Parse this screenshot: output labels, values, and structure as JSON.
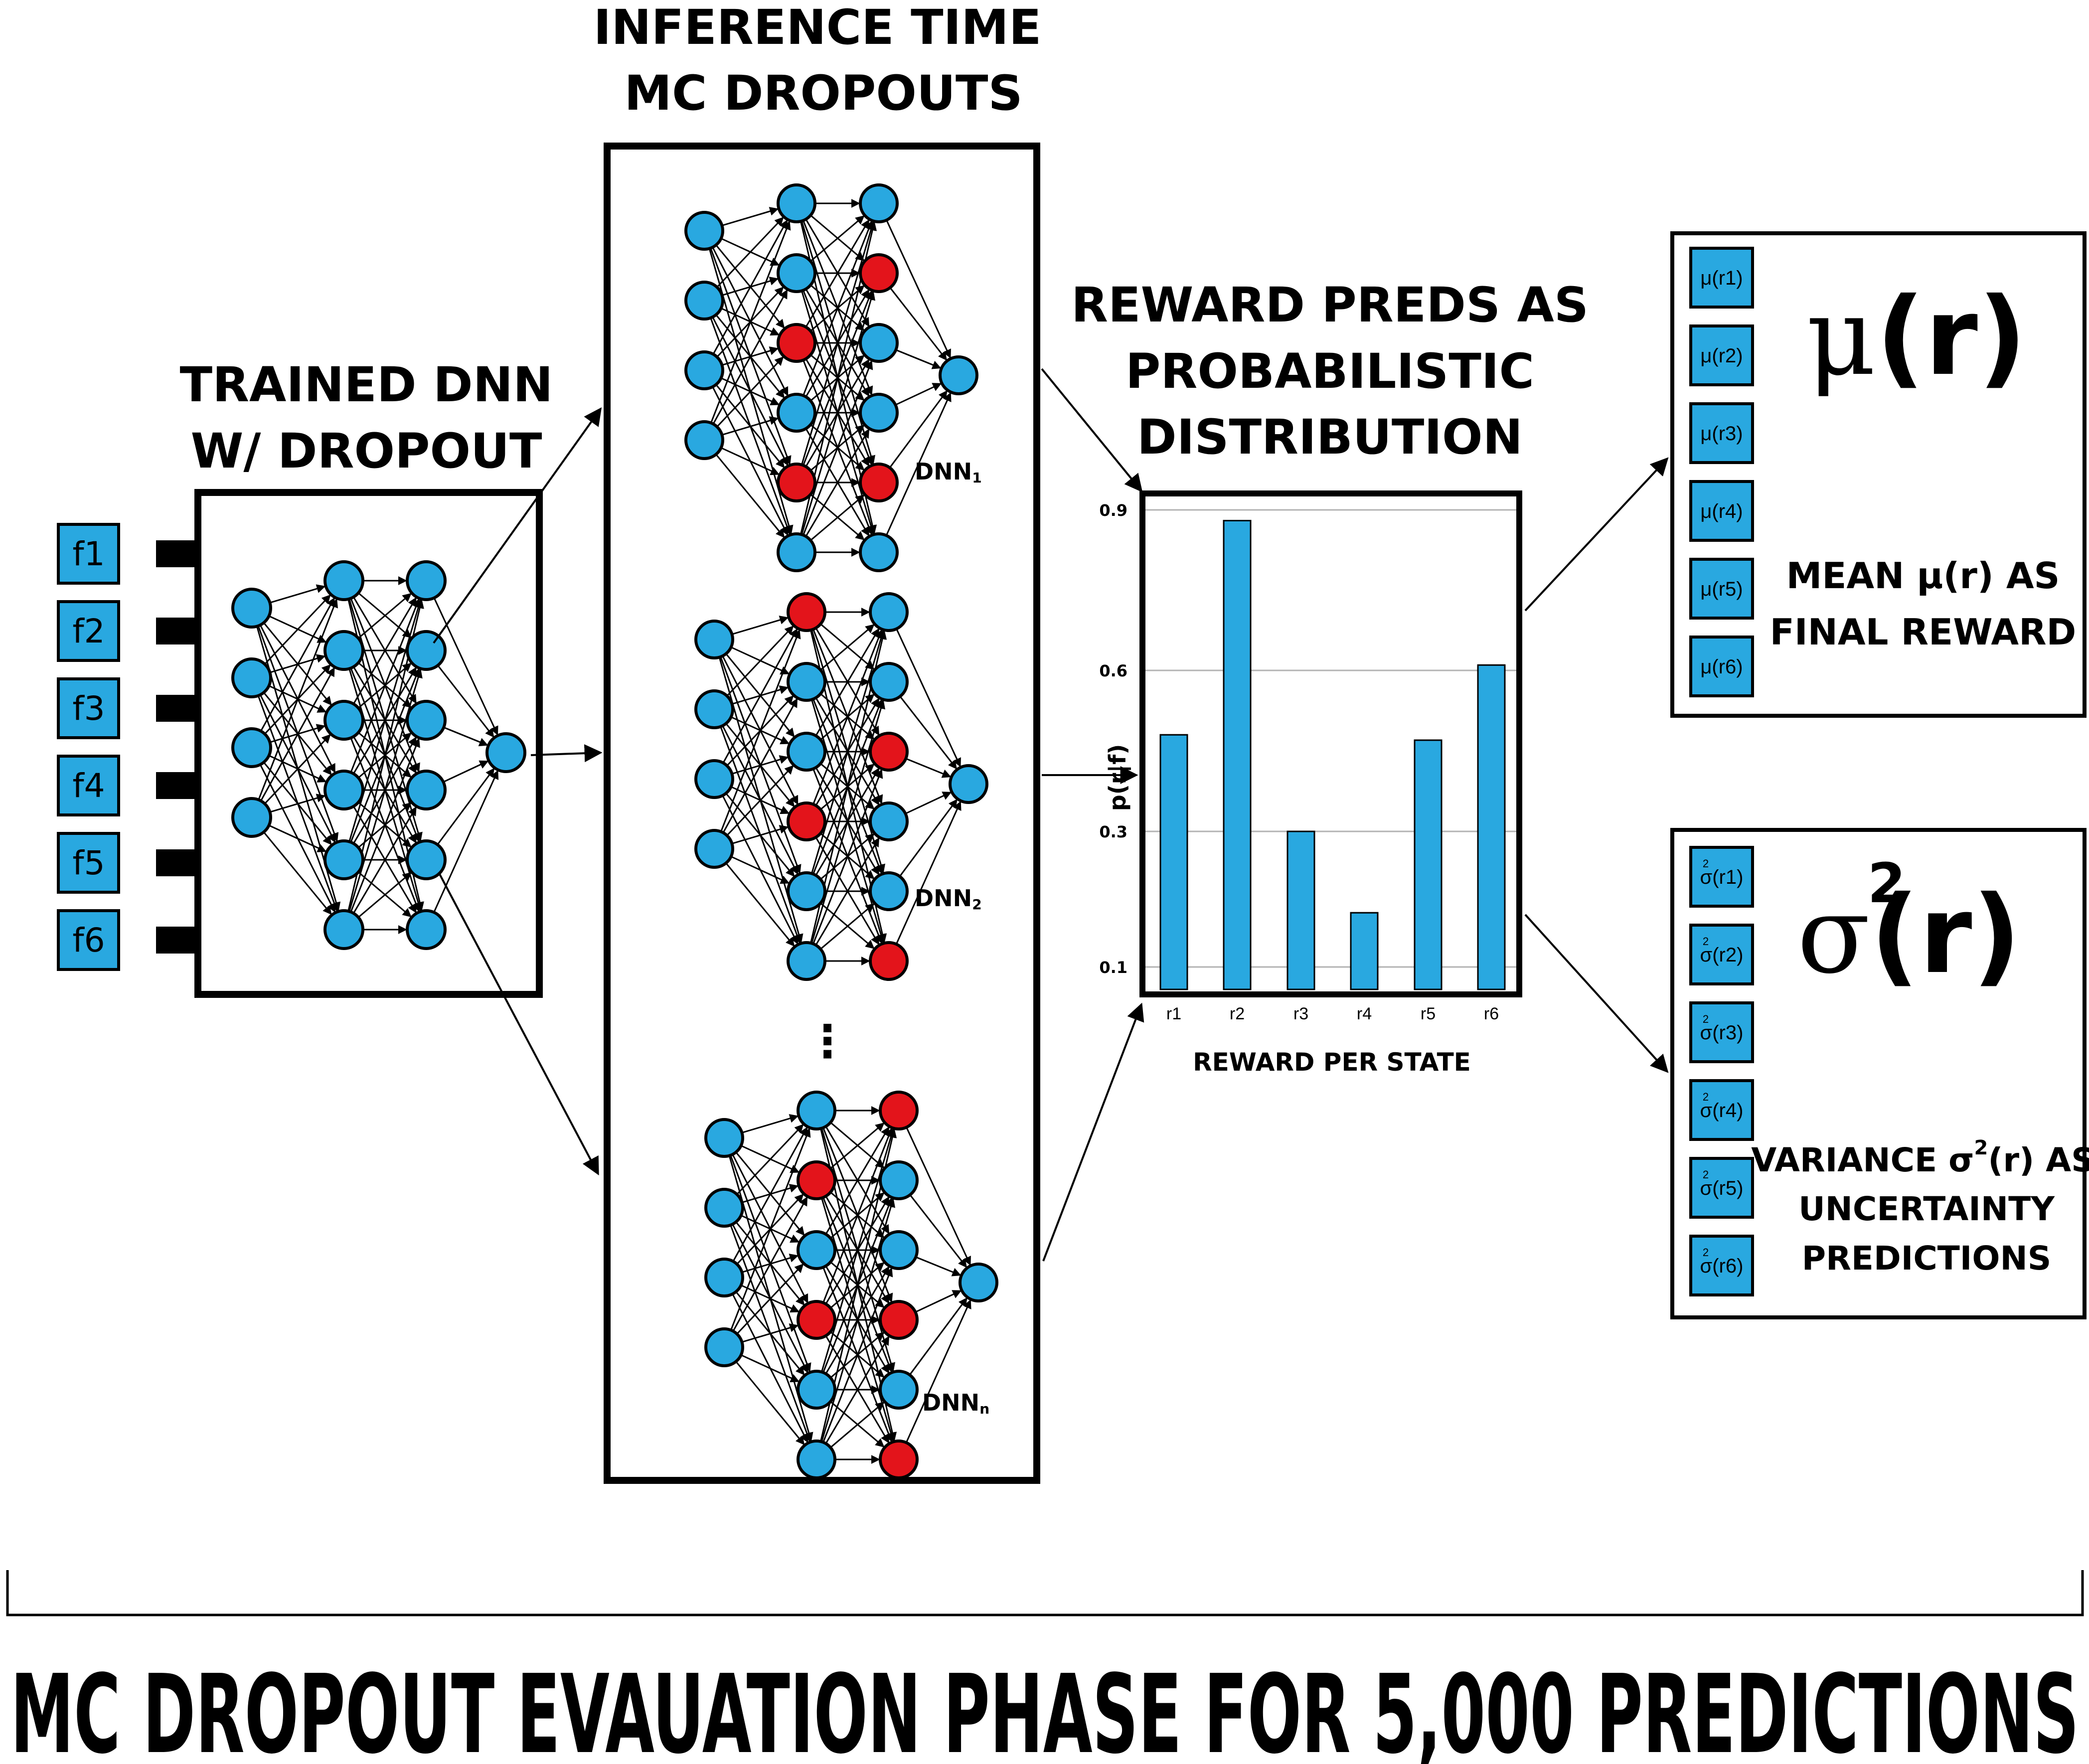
{
  "trained": {
    "title_line1": "TRAINED DNN",
    "title_line2": "W/ DROPOUT",
    "features": [
      "f1",
      "f2",
      "f3",
      "f4",
      "f5",
      "f6"
    ]
  },
  "mc": {
    "title_line1": "INFERENCE TIME",
    "title_line2": "MC DROPOUTS",
    "networks": [
      {
        "label_base": "DNN",
        "label_sub": "1",
        "dropped": {
          "h1": [
            2,
            4
          ],
          "h2": [
            1,
            4
          ]
        }
      },
      {
        "label_base": "DNN",
        "label_sub": "2",
        "dropped": {
          "h1": [
            0,
            3
          ],
          "h2": [
            2,
            5
          ]
        }
      },
      {
        "label_base": "DNN",
        "label_sub": "n",
        "dropped": {
          "h1": [
            1,
            3
          ],
          "h2": [
            0,
            3,
            5
          ]
        }
      }
    ],
    "ellipsis": "⋮"
  },
  "dist": {
    "title_line1": "REWARD PREDS AS",
    "title_line2": "PROBABILISTIC",
    "title_line3": "DISTRIBUTION"
  },
  "chart_data": {
    "type": "bar",
    "categories": [
      "r1",
      "r2",
      "r3",
      "r4",
      "r5",
      "r6"
    ],
    "values": [
      0.48,
      0.88,
      0.3,
      0.18,
      0.47,
      0.61
    ],
    "ylabel": "p(r|f)",
    "xlabel": "REWARD PER STATE",
    "yticks": [
      0.1,
      0.3,
      0.6,
      0.9
    ],
    "ytick_labels": [
      "0.1",
      "0.3",
      "0.6",
      "0.9"
    ],
    "ylim": [
      0.1,
      0.9
    ],
    "grid": true,
    "bar_color": "#29a8e0"
  },
  "mean": {
    "boxes": [
      "μ(r1)",
      "μ(r2)",
      "μ(r3)",
      "μ(r4)",
      "μ(r5)",
      "μ(r6)"
    ],
    "big_symbol": "μ",
    "big_r": "(r)",
    "caption_line1": "MEAN μ(r) AS",
    "caption_line2": "FINAL REWARD"
  },
  "variance": {
    "boxes": [
      "σ(r1)",
      "σ(r2)",
      "σ(r3)",
      "σ(r4)",
      "σ(r5)",
      "σ(r6)"
    ],
    "big_symbol": "σ",
    "big_sup": "2",
    "big_r": "(r)",
    "caption_line1_a": "VARIANCE σ",
    "caption_line1_sup": "2",
    "caption_line1_b": "(r) AS",
    "caption_line2": "UNCERTAINTY",
    "caption_line3": "PREDICTIONS"
  },
  "footer": {
    "title": "MC DROPOUT EVAUATION PHASE FOR 5,000 PREDICTIONS"
  },
  "colors": {
    "node_blue": "#29a8e0",
    "node_red": "#e3141b",
    "border": "#000000"
  }
}
